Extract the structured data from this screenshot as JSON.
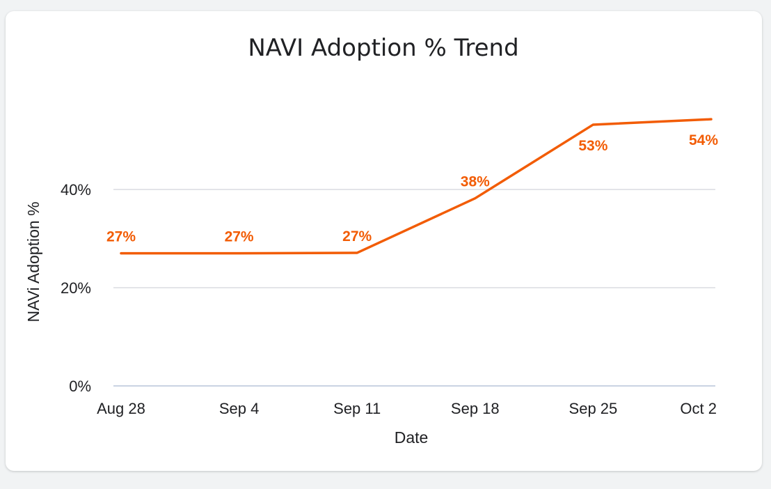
{
  "chart_data": {
    "type": "line",
    "title": "NAVI Adoption % Trend",
    "xlabel": "Date",
    "ylabel": "NAVi Adoption %",
    "categories": [
      "Aug 28",
      "Sep 4",
      "Sep 11",
      "Sep 18",
      "Sep 25",
      "Oct 2"
    ],
    "series": [
      {
        "values": [
          27,
          27,
          27.1,
          38.2,
          53.2,
          54.3
        ],
        "data_labels": [
          "27%",
          "27%",
          "27%",
          "38%",
          "53%",
          "54%"
        ]
      }
    ],
    "ylim": [
      0,
      60
    ],
    "yticks": [
      0,
      20,
      40
    ],
    "ytick_labels": [
      "0%",
      "20%",
      "40%"
    ],
    "grid": true,
    "legend": "none",
    "line_color": "#f25c05",
    "label_color": "#f25c05"
  }
}
